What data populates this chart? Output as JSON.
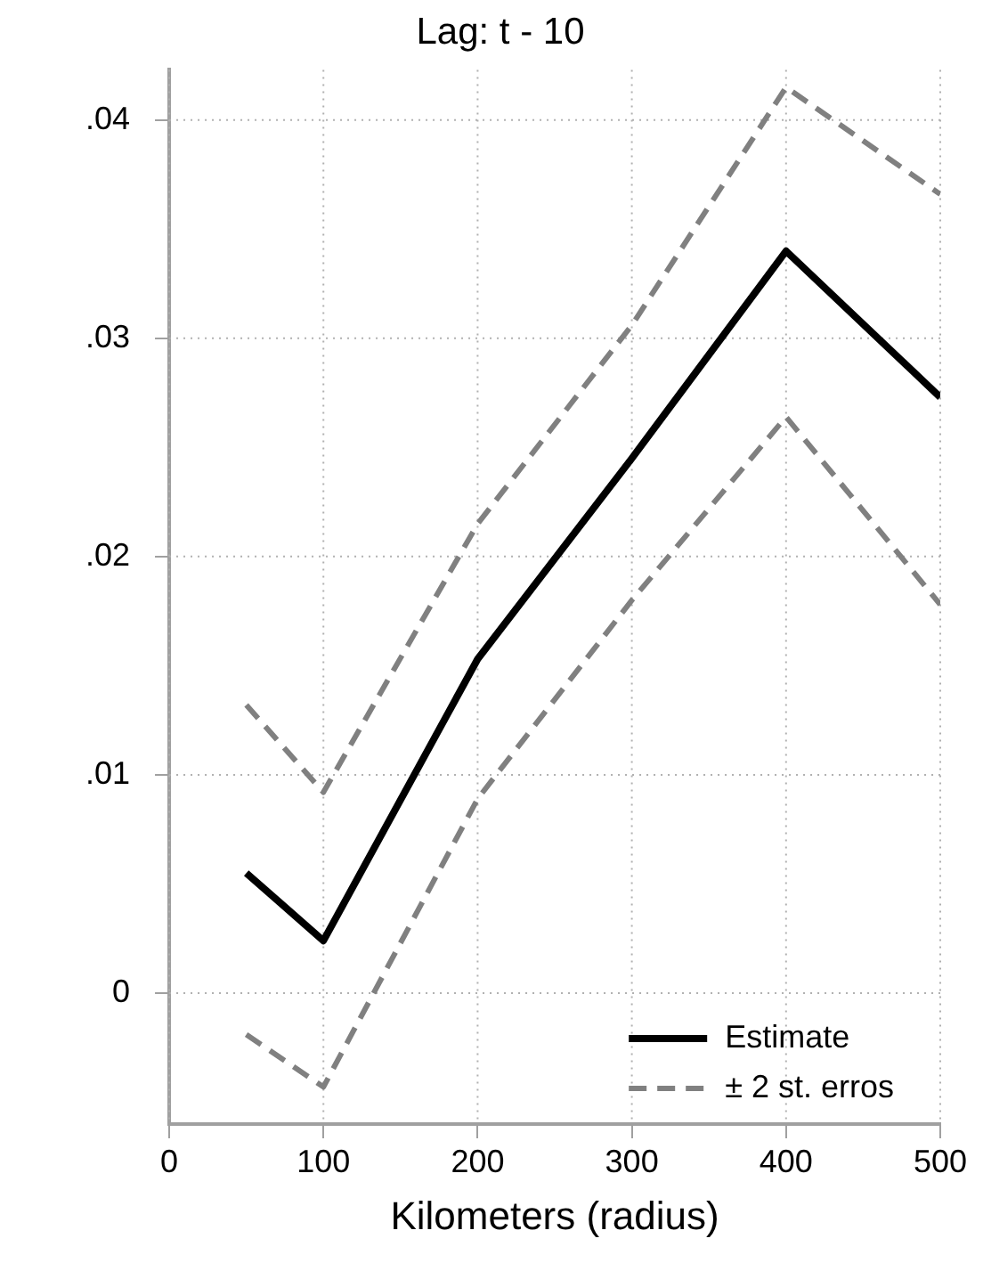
{
  "chart_data": {
    "type": "line",
    "title": "Lag: t - 10",
    "xlabel": "Kilometers (radius)",
    "x": [
      50,
      100,
      200,
      300,
      400,
      500
    ],
    "series": [
      {
        "name": "Estimate",
        "color": "#000000",
        "line_style": "solid",
        "values": [
          0.0055,
          0.0024,
          0.0153,
          0.0245,
          0.034,
          0.0273
        ]
      },
      {
        "name": "± 2 st. erros",
        "color": "#808080",
        "line_style": "dashed",
        "values": [
          0.0132,
          0.0092,
          0.0215,
          0.0306,
          0.0415,
          0.0366
        ]
      },
      {
        "color": "#808080",
        "line_style": "dashed",
        "values": [
          -0.0019,
          -0.0043,
          0.0089,
          0.018,
          0.0264,
          0.0178
        ]
      }
    ],
    "xlim": [
      0,
      500
    ],
    "xticks": [
      0,
      100,
      200,
      300,
      400,
      500
    ],
    "ylim": [
      -0.006,
      0.0423
    ],
    "yticks": [
      0,
      {
        "value": 0.01,
        "label": ".01"
      },
      {
        "value": 0.02,
        "label": ".02"
      },
      {
        "value": 0.03,
        "label": ".03"
      },
      {
        "value": 0.04,
        "label": ".04"
      }
    ],
    "grid": true,
    "legend": "bottom right",
    "marker": "none"
  }
}
